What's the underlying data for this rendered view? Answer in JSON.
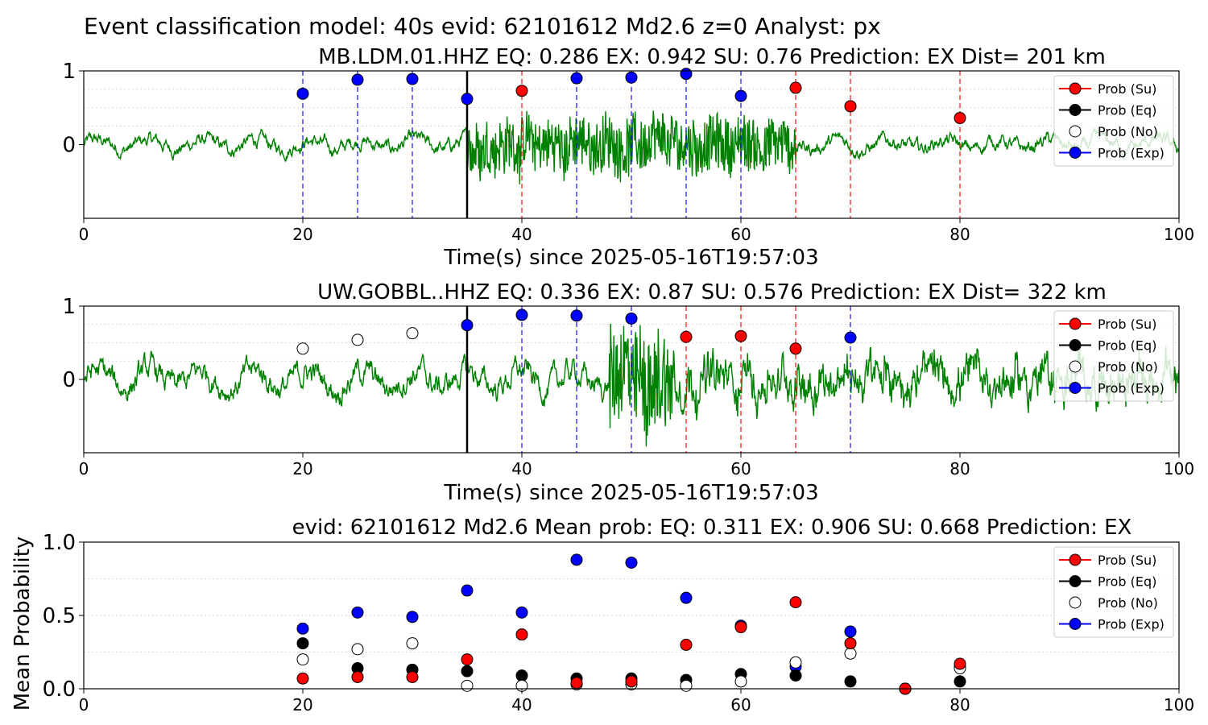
{
  "suptitle": "Event classification model: 40s evid: 62101612 Md2.6 z=0 Analyst: px",
  "legend": [
    "Prob (Su)",
    "Prob (Eq)",
    "Prob (No)",
    "Prob (Exp)"
  ],
  "colors": {
    "su": "#ff0000",
    "eq": "#000000",
    "no": "#ffffff",
    "exp": "#0000ff",
    "wave": "#008000",
    "vline_su": "#ff0000",
    "vline_exp": "#0000ff"
  },
  "chart_data": [
    {
      "type": "line",
      "title": "MB.LDM.01.HHZ   EQ: 0.286  EX: 0.942  SU: 0.76   Prediction: EX    Dist= 201 km",
      "xlabel": "Time(s) since 2025-05-16T19:57:03",
      "ylabel": "",
      "xlim": [
        0,
        100
      ],
      "ylim": [
        -1,
        1
      ],
      "xticks": [
        "0",
        "20",
        "40",
        "60",
        "80",
        "100"
      ],
      "yticks": [
        "0",
        "1"
      ],
      "reference_line_x": 35,
      "waveform": {
        "onset": 33,
        "strong_start": 35,
        "strong_end": 65,
        "late_segment_from": 88
      },
      "windows": [
        {
          "t": 20,
          "class": "exp",
          "p": 0.69
        },
        {
          "t": 25,
          "class": "exp",
          "p": 0.88
        },
        {
          "t": 30,
          "class": "exp",
          "p": 0.89
        },
        {
          "t": 35,
          "class": "exp",
          "p": 0.62
        },
        {
          "t": 40,
          "class": "su",
          "p": 0.73
        },
        {
          "t": 45,
          "class": "exp",
          "p": 0.9
        },
        {
          "t": 50,
          "class": "exp",
          "p": 0.91
        },
        {
          "t": 55,
          "class": "exp",
          "p": 0.96
        },
        {
          "t": 60,
          "class": "exp",
          "p": 0.66
        },
        {
          "t": 65,
          "class": "su",
          "p": 0.77
        },
        {
          "t": 70,
          "class": "su",
          "p": 0.52
        },
        {
          "t": 80,
          "class": "su",
          "p": 0.36
        }
      ],
      "legend_position": "right"
    },
    {
      "type": "line",
      "title": "UW.GOBBL..HHZ   EQ: 0.336  EX: 0.87  SU: 0.576   Prediction: EX    Dist= 322 km",
      "xlabel": "Time(s) since 2025-05-16T19:57:03",
      "ylabel": "",
      "xlim": [
        0,
        100
      ],
      "ylim": [
        -1,
        1
      ],
      "xticks": [
        "0",
        "20",
        "40",
        "60",
        "80",
        "100"
      ],
      "yticks": [
        "0",
        "1"
      ],
      "reference_line_x": 35,
      "waveform": {
        "onset": 48,
        "strong_start": 48,
        "strong_end": 54,
        "late_segment_from": 88
      },
      "windows": [
        {
          "t": 20,
          "class": "no",
          "p": 0.42
        },
        {
          "t": 25,
          "class": "no",
          "p": 0.54
        },
        {
          "t": 30,
          "class": "no",
          "p": 0.63
        },
        {
          "t": 35,
          "class": "exp",
          "p": 0.74
        },
        {
          "t": 40,
          "class": "exp",
          "p": 0.88
        },
        {
          "t": 45,
          "class": "exp",
          "p": 0.87
        },
        {
          "t": 50,
          "class": "exp",
          "p": 0.83
        },
        {
          "t": 55,
          "class": "su",
          "p": 0.58
        },
        {
          "t": 60,
          "class": "su",
          "p": 0.59
        },
        {
          "t": 65,
          "class": "su",
          "p": 0.42
        },
        {
          "t": 70,
          "class": "exp",
          "p": 0.57
        }
      ],
      "legend_position": "right"
    },
    {
      "type": "scatter",
      "title": "evid: 62101612  Md2.6   Mean prob:   EQ: 0.311  EX: 0.906  SU: 0.668   Prediction: EX",
      "xlabel": "",
      "ylabel": "Mean Probability",
      "xlim": [
        0,
        100
      ],
      "ylim": [
        0,
        1
      ],
      "xticks": [
        "0",
        "20",
        "40",
        "60",
        "80",
        "100"
      ],
      "yticks": [
        "0.0",
        "0.5",
        "1.0"
      ],
      "x": [
        20,
        25,
        30,
        35,
        40,
        45,
        50,
        55,
        60,
        65,
        70,
        75,
        80
      ],
      "series": [
        {
          "name": "Prob (Exp)",
          "key": "exp",
          "values": [
            0.41,
            0.52,
            0.49,
            0.67,
            0.52,
            0.88,
            0.86,
            0.62,
            0.43,
            0.15,
            0.39,
            0.0,
            0.15
          ]
        },
        {
          "name": "Prob (Eq)",
          "key": "eq",
          "values": [
            0.31,
            0.14,
            0.13,
            0.12,
            0.09,
            0.07,
            0.07,
            0.06,
            0.1,
            0.09,
            0.05,
            0.0,
            0.05
          ]
        },
        {
          "name": "Prob (No)",
          "key": "no",
          "values": [
            0.2,
            0.27,
            0.31,
            0.02,
            0.02,
            0.03,
            0.03,
            0.02,
            0.05,
            0.18,
            0.24,
            0.0,
            0.14
          ]
        },
        {
          "name": "Prob (Su)",
          "key": "su",
          "values": [
            0.07,
            0.08,
            0.08,
            0.2,
            0.37,
            0.04,
            0.05,
            0.3,
            0.42,
            0.59,
            0.31,
            0.0,
            0.17
          ]
        }
      ],
      "legend_position": "right"
    }
  ]
}
